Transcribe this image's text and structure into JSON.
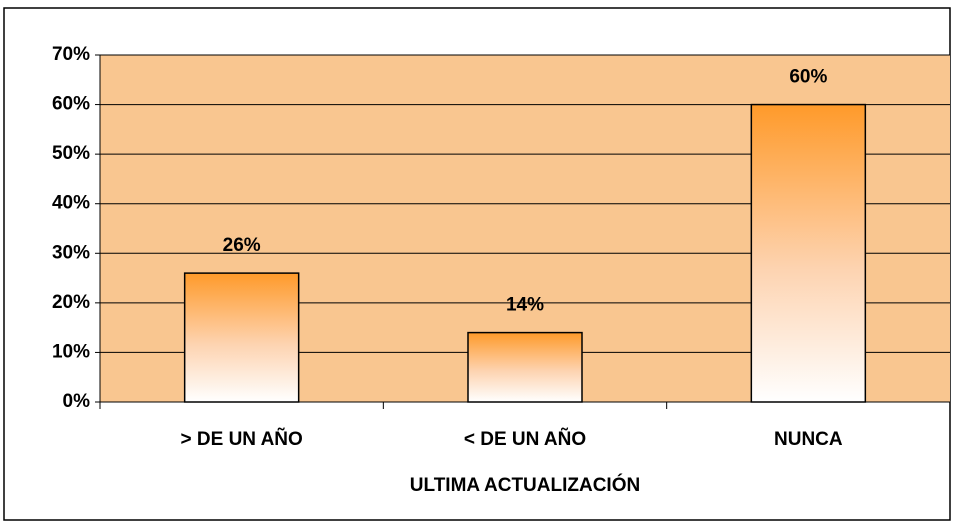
{
  "chart_data": {
    "type": "bar",
    "x_label": "ULTIMA ACTUALIZACIÓN",
    "categories": [
      "> DE UN AÑO",
      "< DE UN AÑO",
      "NUNCA"
    ],
    "values": [
      26,
      14,
      60
    ],
    "value_labels": [
      "26%",
      "14%",
      "60%"
    ],
    "color": "#ff9a2a",
    "ylim": [
      0,
      70
    ],
    "yticks": [
      {
        "value": 0,
        "label": "0%"
      },
      {
        "value": 10,
        "label": "10%"
      },
      {
        "value": 20,
        "label": "20%"
      },
      {
        "value": 30,
        "label": "30%"
      },
      {
        "value": 40,
        "label": "40%"
      },
      {
        "value": 50,
        "label": "50%"
      },
      {
        "value": 60,
        "label": "60%"
      },
      {
        "value": 70,
        "label": "70%"
      }
    ],
    "grid": true
  }
}
